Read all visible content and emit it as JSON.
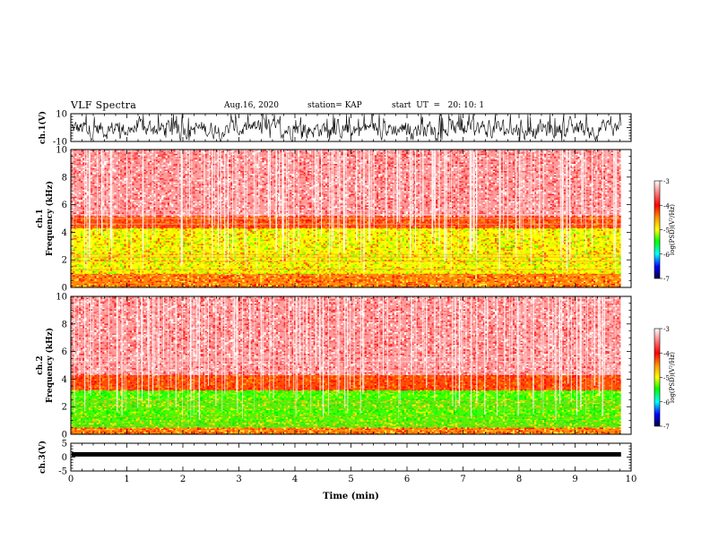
{
  "header": {
    "title": "VLF Spectra",
    "date": "Aug.16, 2020",
    "station": "station= KAP",
    "start": "start  UT  =   20: 10: 1"
  },
  "chart_data": [
    {
      "type": "line",
      "panel": "ch1-waveform",
      "ylabel": "ch.1(V)",
      "ylim": [
        -10,
        10
      ],
      "yticks": [
        "10",
        "-10"
      ],
      "xlim": [
        0,
        10
      ]
    },
    {
      "type": "heatmap",
      "panel": "ch1-spectrogram",
      "ylabel_line1": "ch.1",
      "ylabel_line2": "Frequency  (kHz)",
      "ylim": [
        0,
        10
      ],
      "yticks": [
        "0",
        "2",
        "4",
        "6",
        "8",
        "10"
      ],
      "xlim": [
        0,
        10
      ],
      "data_end_min": 9.82,
      "colorbar": {
        "label": "log(PSD)(V²/Hz)",
        "ticks": [
          "-3",
          "-4",
          "-5",
          "-6",
          "-7"
        ],
        "range": [
          -7,
          -3
        ]
      },
      "bands": [
        {
          "from_khz": 0.0,
          "to_khz": 1.0,
          "level": "yellow-red"
        },
        {
          "from_khz": 1.0,
          "to_khz": 4.3,
          "level": "green-yellow"
        },
        {
          "from_khz": 4.3,
          "to_khz": 5.2,
          "level": "red-orange"
        },
        {
          "from_khz": 5.2,
          "to_khz": 10.0,
          "level": "light-red"
        }
      ]
    },
    {
      "type": "heatmap",
      "panel": "ch2-spectrogram",
      "ylabel_line1": "ch.2",
      "ylabel_line2": "Frequency  (kHz)",
      "ylim": [
        0,
        10
      ],
      "yticks": [
        "0",
        "2",
        "4",
        "6",
        "8",
        "10"
      ],
      "xlim": [
        0,
        10
      ],
      "data_end_min": 9.82,
      "colorbar": {
        "label": "log(PSD)(V²/Hz)",
        "ticks": [
          "-3",
          "-4",
          "-5",
          "-6",
          "-7"
        ],
        "range": [
          -7,
          -3
        ]
      },
      "bands": [
        {
          "from_khz": 0.0,
          "to_khz": 0.5,
          "level": "yellow-red"
        },
        {
          "from_khz": 0.5,
          "to_khz": 3.2,
          "level": "green"
        },
        {
          "from_khz": 3.2,
          "to_khz": 4.3,
          "level": "red-orange"
        },
        {
          "from_khz": 4.3,
          "to_khz": 10.0,
          "level": "light-red"
        }
      ]
    },
    {
      "type": "line",
      "panel": "ch3-waveform",
      "ylabel": "ch.3(V)",
      "ylim": [
        -5,
        5
      ],
      "yticks": [
        "5",
        "0",
        "-5"
      ],
      "xlim": [
        0,
        10
      ],
      "xlabel": "Time  (min)",
      "xticks": [
        "0",
        "1",
        "2",
        "3",
        "4",
        "5",
        "6",
        "7",
        "8",
        "9",
        "10"
      ],
      "level_v": 1.0
    }
  ]
}
